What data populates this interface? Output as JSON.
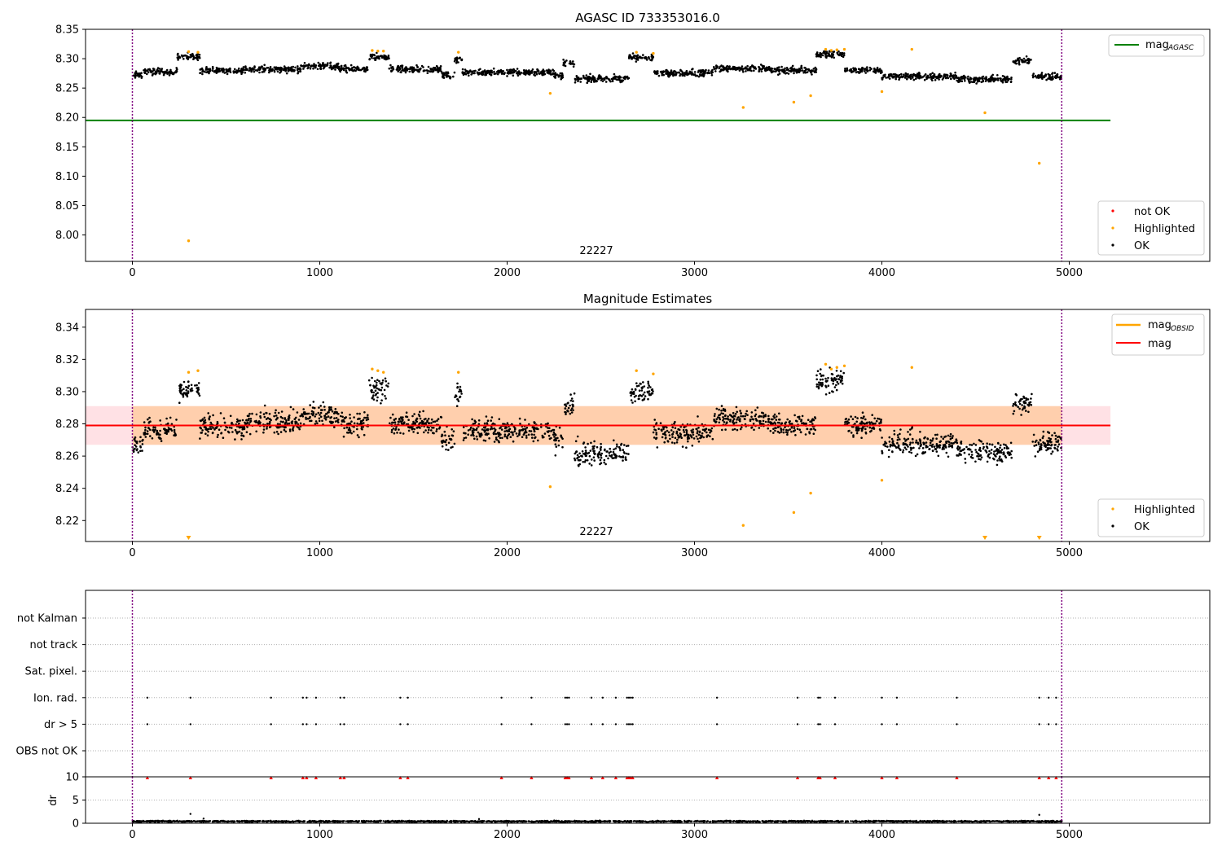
{
  "colors": {
    "ok": "#000000",
    "highlighted": "#ffa500",
    "not_ok": "#ff0000",
    "agasc_line": "#008000",
    "mag_line": "#ff0000",
    "obsid_line": "#ffa500",
    "band_orange": "#ffc896",
    "band_pink": "#ffc8d0",
    "boundary": "#800080",
    "dr_dots": "#000000",
    "dr_flags": "#ff0000"
  },
  "chart_data": [
    {
      "type": "scatter",
      "title": "AGASC ID 733353016.0",
      "xlim": [
        -250,
        5750
      ],
      "ylim": [
        7.955,
        8.35
      ],
      "x_ticks": [
        "0",
        "1000",
        "2000",
        "3000",
        "4000",
        "5000"
      ],
      "y_ticks": [
        "8.00",
        "8.05",
        "8.10",
        "8.15",
        "8.20",
        "8.25",
        "8.30",
        "8.35"
      ],
      "obsid_label": "22227",
      "obsid_boundaries": [
        0,
        4960
      ],
      "legend_lines": [
        {
          "label": "mag",
          "sub": "AGASC"
        }
      ],
      "legend_points": [
        {
          "label": "not OK",
          "type": "not_ok"
        },
        {
          "label": "Highlighted",
          "type": "highlighted"
        },
        {
          "label": "OK",
          "type": "ok"
        }
      ],
      "mag_agasc": 8.195,
      "mag_agasc_x": [
        -250,
        5220
      ],
      "highlighted": [
        [
          300,
          7.99
        ],
        [
          4840,
          8.122
        ],
        [
          3260,
          8.217
        ],
        [
          4550,
          8.208
        ],
        [
          3530,
          8.226
        ],
        [
          3620,
          8.237
        ],
        [
          2230,
          8.241
        ],
        [
          4000,
          8.244
        ],
        [
          300,
          8.312
        ],
        [
          350,
          8.311
        ],
        [
          1280,
          8.314
        ],
        [
          1310,
          8.313
        ],
        [
          1340,
          8.313
        ],
        [
          1740,
          8.311
        ],
        [
          2690,
          8.311
        ],
        [
          2780,
          8.309
        ],
        [
          3700,
          8.316
        ],
        [
          3730,
          8.314
        ],
        [
          3760,
          8.315
        ],
        [
          3800,
          8.316
        ],
        [
          4160,
          8.316
        ]
      ],
      "ok_segments": [
        [
          0,
          60,
          8.272
        ],
        [
          60,
          240,
          8.278
        ],
        [
          240,
          360,
          8.304
        ],
        [
          360,
          600,
          8.28
        ],
        [
          600,
          900,
          8.282
        ],
        [
          900,
          1100,
          8.287
        ],
        [
          1100,
          1260,
          8.282
        ],
        [
          1260,
          1370,
          8.303
        ],
        [
          1370,
          1650,
          8.282
        ],
        [
          1650,
          1720,
          8.272
        ],
        [
          1720,
          1760,
          8.298
        ],
        [
          1760,
          2250,
          8.277
        ],
        [
          2250,
          2300,
          8.271
        ],
        [
          2300,
          2360,
          8.292
        ],
        [
          2360,
          2650,
          8.266
        ],
        [
          2650,
          2780,
          8.302
        ],
        [
          2780,
          3100,
          8.276
        ],
        [
          3100,
          3400,
          8.283
        ],
        [
          3400,
          3650,
          8.28
        ],
        [
          3650,
          3800,
          8.308
        ],
        [
          3800,
          4000,
          8.28
        ],
        [
          4000,
          4400,
          8.27
        ],
        [
          4400,
          4700,
          8.265
        ],
        [
          4700,
          4800,
          8.296
        ],
        [
          4800,
          4960,
          8.27
        ]
      ]
    },
    {
      "type": "scatter",
      "title": "Magnitude Estimates",
      "xlim": [
        -250,
        5750
      ],
      "ylim": [
        8.207,
        8.351
      ],
      "x_ticks": [
        "0",
        "1000",
        "2000",
        "3000",
        "4000",
        "5000"
      ],
      "y_ticks": [
        "8.22",
        "8.24",
        "8.26",
        "8.28",
        "8.30",
        "8.32",
        "8.34"
      ],
      "obsid_label": "22227",
      "obsid_boundaries": [
        0,
        4960
      ],
      "legend_lines": [
        {
          "label": "mag",
          "sub": "OBSID",
          "type": "obsid"
        },
        {
          "label": "mag",
          "sub": "",
          "type": "mag"
        }
      ],
      "legend_points": [
        {
          "label": "Highlighted",
          "type": "highlighted"
        },
        {
          "label": "OK",
          "type": "ok"
        }
      ],
      "mag": 8.279,
      "mag_x": [
        -250,
        5220
      ],
      "band_pink": [
        8.267,
        8.291
      ],
      "band_orange": [
        8.267,
        8.291
      ],
      "band_orange_x": [
        0,
        4960
      ],
      "highlighted": [
        [
          2230,
          8.241
        ],
        [
          3260,
          8.217
        ],
        [
          3530,
          8.225
        ],
        [
          3620,
          8.237
        ],
        [
          4000,
          8.245
        ],
        [
          300,
          8.312
        ],
        [
          350,
          8.313
        ],
        [
          1280,
          8.314
        ],
        [
          1310,
          8.313
        ],
        [
          1340,
          8.312
        ],
        [
          1740,
          8.312
        ],
        [
          2690,
          8.313
        ],
        [
          2780,
          8.311
        ],
        [
          3700,
          8.317
        ],
        [
          3730,
          8.314
        ],
        [
          3760,
          8.315
        ],
        [
          3800,
          8.316
        ],
        [
          4160,
          8.315
        ]
      ],
      "offscale_low": [
        300,
        4550,
        4840
      ],
      "ok_segments": [
        [
          0,
          60,
          8.268
        ],
        [
          60,
          240,
          8.276
        ],
        [
          240,
          360,
          8.301
        ],
        [
          360,
          600,
          8.278
        ],
        [
          600,
          900,
          8.281
        ],
        [
          900,
          1100,
          8.286
        ],
        [
          1100,
          1260,
          8.28
        ],
        [
          1260,
          1370,
          8.302
        ],
        [
          1370,
          1650,
          8.28
        ],
        [
          1650,
          1720,
          8.27
        ],
        [
          1720,
          1760,
          8.299
        ],
        [
          1760,
          2250,
          8.276
        ],
        [
          2250,
          2300,
          8.27
        ],
        [
          2300,
          2360,
          8.291
        ],
        [
          2360,
          2650,
          8.262
        ],
        [
          2650,
          2780,
          8.3
        ],
        [
          2780,
          3100,
          8.274
        ],
        [
          3100,
          3400,
          8.283
        ],
        [
          3400,
          3650,
          8.279
        ],
        [
          3650,
          3800,
          8.307
        ],
        [
          3800,
          4000,
          8.279
        ],
        [
          4000,
          4400,
          8.268
        ],
        [
          4400,
          4700,
          8.263
        ],
        [
          4700,
          4800,
          8.293
        ],
        [
          4800,
          4960,
          8.268
        ]
      ]
    },
    {
      "type": "scatter",
      "title": "",
      "xlim": [
        -250,
        5750
      ],
      "categories": [
        "not Kalman",
        "not track",
        "Sat. pixel.",
        "Ion. rad.",
        "dr > 5",
        "OBS not OK"
      ],
      "flag_x": [
        80,
        310,
        740,
        910,
        930,
        980,
        1110,
        1130,
        1430,
        1470,
        1970,
        2130,
        2310,
        2320,
        2330,
        2450,
        2510,
        2580,
        2640,
        2650,
        2660,
        2670,
        3120,
        3550,
        3660,
        3670,
        3750,
        4000,
        4080,
        4400,
        4840,
        4890,
        4930
      ],
      "flag_rows": [
        "Ion. rad.",
        "dr > 5"
      ],
      "obsid_boundaries": [
        0,
        4960
      ]
    },
    {
      "type": "scatter",
      "title": "",
      "xlim": [
        -250,
        5750
      ],
      "ylim": [
        0,
        10
      ],
      "ylabel": "dr",
      "x_ticks": [
        "0",
        "1000",
        "2000",
        "3000",
        "4000",
        "5000"
      ],
      "y_ticks": [
        "0",
        "5",
        "10"
      ],
      "baseline": 0.4,
      "spikes": [
        [
          310,
          2.0
        ],
        [
          4840,
          1.8
        ],
        [
          380,
          1.0
        ],
        [
          1850,
          0.9
        ]
      ],
      "obsid_boundaries": [
        0,
        4960
      ]
    }
  ]
}
